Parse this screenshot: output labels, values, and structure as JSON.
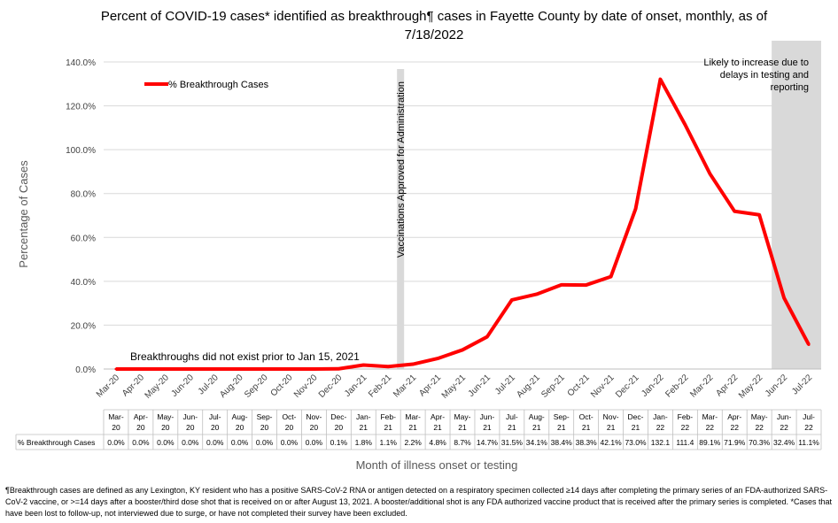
{
  "title_line1": "Percent of COVID-19 cases* identified as breakthrough¶ cases in Fayette County by date of onset, monthly, as of",
  "title_line2": "7/18/2022",
  "chart_data": {
    "type": "line",
    "title": "Percent of COVID-19 cases* identified as breakthrough¶ cases in Fayette County by date of onset, monthly, as of 7/18/2022",
    "xlabel": "Month of illness onset or testing",
    "ylabel": "Percentage of Cases",
    "ylim": [
      0,
      140
    ],
    "yticks": [
      "0.0%",
      "20.0%",
      "40.0%",
      "60.0%",
      "80.0%",
      "100.0%",
      "120.0%",
      "140.0%"
    ],
    "grid": true,
    "legend_position": "top-left",
    "color": "#ff0000",
    "categories": [
      "Mar-20",
      "Apr-20",
      "May-20",
      "Jun-20",
      "Jul-20",
      "Aug-20",
      "Sep-20",
      "Oct-20",
      "Nov-20",
      "Dec-20",
      "Jan-21",
      "Feb-21",
      "Mar-21",
      "Apr-21",
      "May-21",
      "Jun-21",
      "Jul-21",
      "Aug-21",
      "Sep-21",
      "Oct-21",
      "Nov-21",
      "Dec-21",
      "Jan-22",
      "Feb-22",
      "Mar-22",
      "Apr-22",
      "May-22",
      "Jun-22",
      "Jul-22"
    ],
    "table_categories": [
      [
        "Mar-",
        "20"
      ],
      [
        "Apr-",
        "20"
      ],
      [
        "May-",
        "20"
      ],
      [
        "Jun-",
        "20"
      ],
      [
        "Jul-",
        "20"
      ],
      [
        "Aug-",
        "20"
      ],
      [
        "Sep-",
        "20"
      ],
      [
        "Oct-",
        "20"
      ],
      [
        "Nov-",
        "20"
      ],
      [
        "Dec-",
        "20"
      ],
      [
        "Jan-",
        "21"
      ],
      [
        "Feb-",
        "21"
      ],
      [
        "Mar-",
        "21"
      ],
      [
        "Apr-",
        "21"
      ],
      [
        "May-",
        "21"
      ],
      [
        "Jun-",
        "21"
      ],
      [
        "Jul-",
        "21"
      ],
      [
        "Aug-",
        "21"
      ],
      [
        "Sep-",
        "21"
      ],
      [
        "Oct-",
        "21"
      ],
      [
        "Nov-",
        "21"
      ],
      [
        "Dec-",
        "21"
      ],
      [
        "Jan-",
        "22"
      ],
      [
        "Feb-",
        "22"
      ],
      [
        "Mar-",
        "22"
      ],
      [
        "Apr-",
        "22"
      ],
      [
        "May-",
        "22"
      ],
      [
        "Jun-",
        "22"
      ],
      [
        "Jul-",
        "22"
      ]
    ],
    "series": [
      {
        "name": "% Breakthrough Cases",
        "values": [
          0.0,
          0.0,
          0.0,
          0.0,
          0.0,
          0.0,
          0.0,
          0.0,
          0.0,
          0.1,
          1.8,
          1.1,
          2.2,
          4.8,
          8.7,
          14.7,
          31.5,
          34.1,
          38.4,
          38.3,
          42.1,
          73.0,
          132.1,
          111.4,
          89.1,
          71.9,
          70.3,
          32.4,
          11.1
        ],
        "labels": [
          "0.0%",
          "0.0%",
          "0.0%",
          "0.0%",
          "0.0%",
          "0.0%",
          "0.0%",
          "0.0%",
          "0.0%",
          "0.1%",
          "1.8%",
          "1.1%",
          "2.2%",
          "4.8%",
          "8.7%",
          "14.7%",
          "31.5%",
          "34.1%",
          "38.4%",
          "38.3%",
          "42.1%",
          "73.0%",
          "132.1",
          "111.4",
          "89.1%",
          "71.9%",
          "70.3%",
          "32.4%",
          "11.1%"
        ]
      }
    ],
    "annotations": {
      "vaccination_line": "Vaccinations Approved for Administration",
      "vaccination_after": "Feb-21",
      "shaded_from": "Jun-22",
      "shaded_text": [
        "Likely to increase due to",
        "delays in testing and",
        "reporting"
      ],
      "pre_vaccine_note": "Breakthroughs did not exist prior to Jan 15, 2021"
    }
  },
  "footnote": "¶Breakthrough cases are defined as any Lexington, KY resident who has a positive SARS-CoV-2 RNA or antigen detected on a respiratory specimen collected ≥14 days after completing the primary series of an FDA-authorized SARS-CoV-2 vaccine, or >=14 days after a booster/third dose shot that is received on or after August 13, 2021.  A booster/additional shot is any FDA authorized vaccine product that is received after the primary series is completed. *Cases that have been lost to follow-up, not interviewed due to surge, or have not completed their survey have been excluded."
}
